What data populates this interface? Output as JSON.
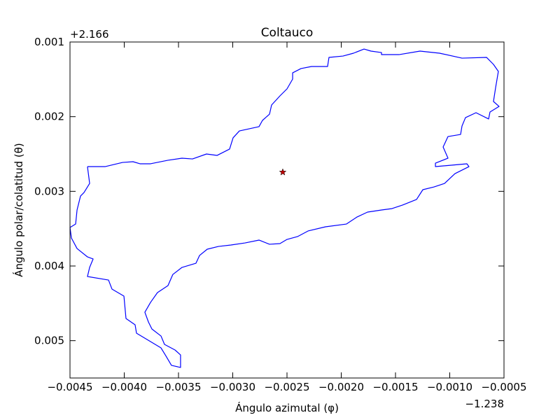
{
  "chart_data": {
    "type": "line",
    "title": "Coltauco",
    "x_label": "Ángulo azimutal (φ)",
    "y_label": "Ángulo polar/colatitud (θ)",
    "x_offset": "−1.238",
    "y_offset": "+2.166",
    "xlim": [
      -0.0045,
      -0.0005
    ],
    "xticks": [
      {
        "value": -0.0045,
        "label": "−0.0045"
      },
      {
        "value": -0.004,
        "label": "−0.0040"
      },
      {
        "value": -0.0035,
        "label": "−0.0035"
      },
      {
        "value": -0.003,
        "label": "−0.0030"
      },
      {
        "value": -0.0025,
        "label": "−0.0025"
      },
      {
        "value": -0.002,
        "label": "−0.0020"
      },
      {
        "value": -0.0015,
        "label": "−0.0015"
      },
      {
        "value": -0.001,
        "label": "−0.0010"
      },
      {
        "value": -0.0005,
        "label": "−0.0005"
      }
    ],
    "ylim": [
      0.0055,
      0.001
    ],
    "yticks": [
      0.001,
      0.002,
      0.003,
      0.004,
      0.005
    ],
    "grid": false,
    "series": [
      {
        "color": "#0000ff",
        "x": [
          -0.004339,
          -0.004177,
          -0.004016,
          -0.003919,
          -0.003855,
          -0.003758,
          -0.003597,
          -0.003468,
          -0.003371,
          -0.003242,
          -0.003145,
          -0.003029,
          -0.002997,
          -0.002939,
          -0.002758,
          -0.002726,
          -0.002661,
          -0.002642,
          -0.002565,
          -0.0025,
          -0.002448,
          -0.002448,
          -0.002371,
          -0.002274,
          -0.002126,
          -0.002113,
          -0.001984,
          -0.001887,
          -0.00179,
          -0.001726,
          -0.001629,
          -0.001629,
          -0.001468,
          -0.001274,
          -0.001094,
          -0.000887,
          -0.000661,
          -0.000597,
          -0.000552,
          -0.000577,
          -0.000597,
          -0.000545,
          -0.000629,
          -0.000642,
          -0.000758,
          -0.000855,
          -0.000887,
          -0.0009,
          -0.001016,
          -0.001061,
          -0.001016,
          -0.001132,
          -0.001132,
          -0.000842,
          -0.000823,
          -0.000952,
          -0.001048,
          -0.001145,
          -0.001248,
          -0.001306,
          -0.001435,
          -0.001532,
          -0.001629,
          -0.001758,
          -0.001855,
          -0.001952,
          -0.002145,
          -0.002306,
          -0.002403,
          -0.0025,
          -0.002565,
          -0.002661,
          -0.002758,
          -0.002887,
          -0.003016,
          -0.003132,
          -0.003235,
          -0.003306,
          -0.003339,
          -0.003468,
          -0.003552,
          -0.003597,
          -0.003694,
          -0.003758,
          -0.00381,
          -0.003777,
          -0.003745,
          -0.003661,
          -0.003629,
          -0.003532,
          -0.003481,
          -0.003481,
          -0.003565,
          -0.00361,
          -0.003661,
          -0.00379,
          -0.003887,
          -0.0039,
          -0.003984,
          -0.004003,
          -0.004113,
          -0.004145,
          -0.004339,
          -0.004319,
          -0.004287,
          -0.004339,
          -0.004435,
          -0.004487,
          -0.0045,
          -0.004448,
          -0.004435,
          -0.004403,
          -0.004371,
          -0.004319,
          -0.004339
        ],
        "values": [
          0.002669,
          0.002669,
          0.002613,
          0.002603,
          0.002631,
          0.002631,
          0.002584,
          0.002556,
          0.002566,
          0.0025,
          0.002519,
          0.002434,
          0.002284,
          0.002191,
          0.002134,
          0.00205,
          0.001966,
          0.001844,
          0.001722,
          0.001628,
          0.001497,
          0.001413,
          0.001356,
          0.001328,
          0.001328,
          0.001206,
          0.001188,
          0.00115,
          0.001094,
          0.001122,
          0.001141,
          0.001169,
          0.001169,
          0.001122,
          0.00115,
          0.001216,
          0.001206,
          0.0013,
          0.001394,
          0.001609,
          0.001797,
          0.001863,
          0.001938,
          0.002031,
          0.001947,
          0.002013,
          0.002125,
          0.002238,
          0.002266,
          0.002406,
          0.002556,
          0.002622,
          0.002669,
          0.002631,
          0.002669,
          0.002763,
          0.002894,
          0.002941,
          0.002978,
          0.003109,
          0.003184,
          0.003231,
          0.00325,
          0.003278,
          0.003344,
          0.003438,
          0.003475,
          0.003531,
          0.003606,
          0.003644,
          0.0037,
          0.003709,
          0.003653,
          0.003691,
          0.003719,
          0.003738,
          0.003775,
          0.003859,
          0.003963,
          0.004019,
          0.004113,
          0.004263,
          0.004356,
          0.004488,
          0.004619,
          0.00475,
          0.004844,
          0.004938,
          0.00505,
          0.005125,
          0.005191,
          0.005359,
          0.005331,
          0.005219,
          0.005097,
          0.004984,
          0.0049,
          0.004788,
          0.004703,
          0.004403,
          0.004309,
          0.004188,
          0.004141,
          0.004019,
          0.003906,
          0.003878,
          0.003766,
          0.003625,
          0.003484,
          0.003438,
          0.00325,
          0.003063,
          0.003016,
          0.002894,
          0.002669
        ]
      },
      {
        "color": "#bf0000",
        "marker": "star",
        "x": [
          -0.002539
        ],
        "values": [
          0.002744
        ]
      }
    ]
  }
}
